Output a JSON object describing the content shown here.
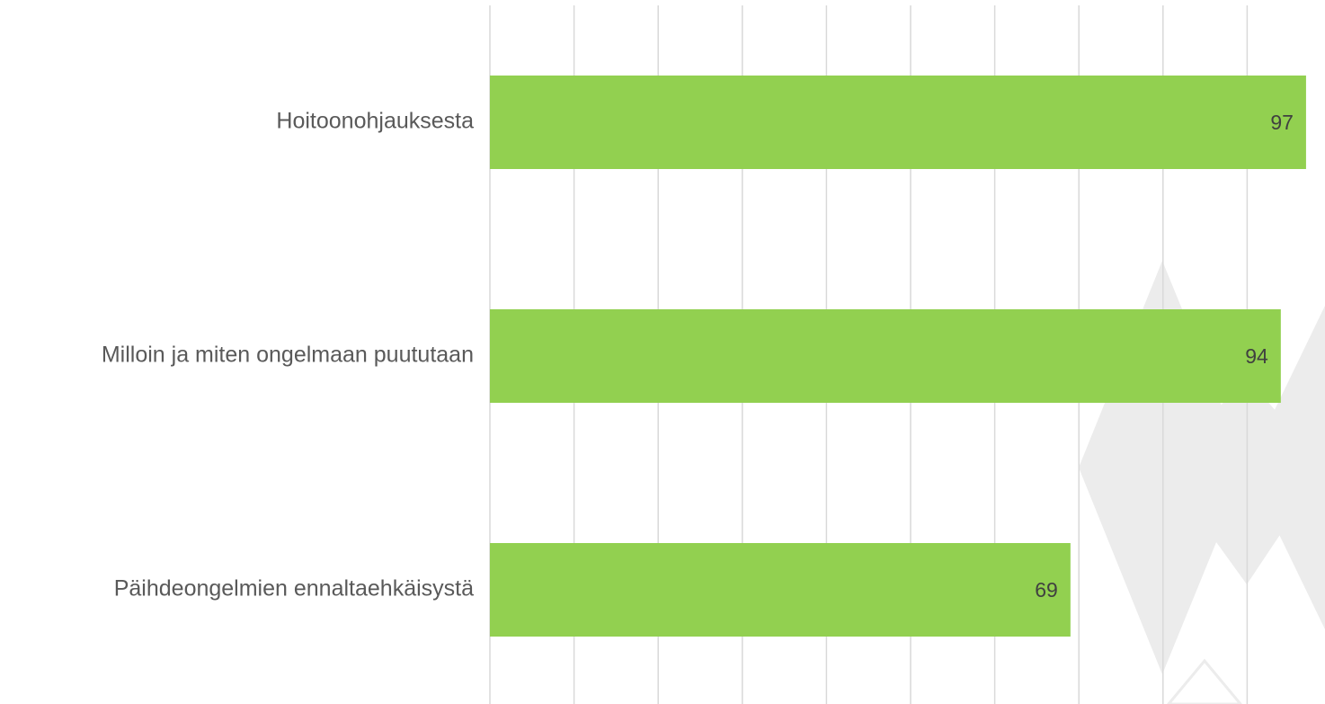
{
  "chart_data": {
    "type": "hbar",
    "categories": [
      "Hoitoonohjauksesta",
      "Milloin ja miten ongelmaan puututaan",
      "Päihdeongelmien ennaltaehkäisystä"
    ],
    "values": [
      97,
      94,
      69
    ],
    "color": "#92d050",
    "xlim": [
      0,
      100
    ],
    "xticks": [
      0,
      10,
      20,
      30,
      40,
      50,
      60,
      70,
      80,
      90
    ],
    "grid": true
  }
}
